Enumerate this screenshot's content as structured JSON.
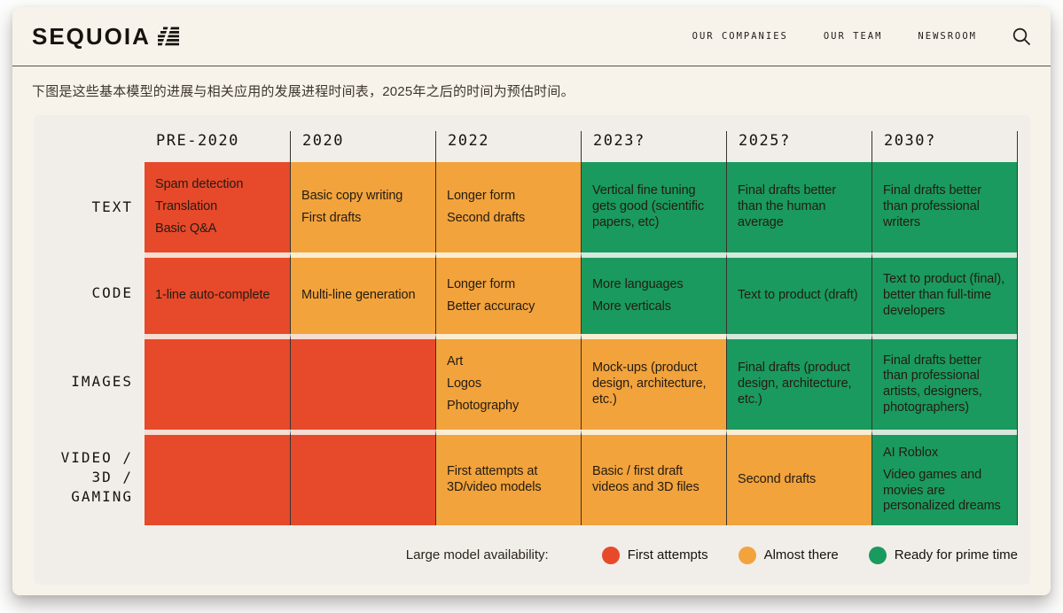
{
  "header": {
    "logo_text": "SEQUOIA",
    "nav": [
      {
        "label": "OUR COMPANIES"
      },
      {
        "label": "OUR TEAM"
      },
      {
        "label": "NEWSROOM"
      }
    ]
  },
  "intro_text": "下图是这些基本模型的进展与相关应用的发展进程时间表，2025年之后的时间为预估时间。",
  "chart": {
    "type": "table",
    "columns": [
      "PRE-2020",
      "2020",
      "2022",
      "2023?",
      "2025?",
      "2030?"
    ],
    "colors": {
      "red": "#E7492B",
      "orange": "#F2A33C",
      "green": "#1A9A5E"
    },
    "rows": [
      {
        "label_lines": [
          "TEXT"
        ],
        "cells": [
          {
            "color": "red",
            "lines": [
              "Spam detection",
              "Translation",
              "Basic Q&A"
            ]
          },
          {
            "color": "orange",
            "lines": [
              "Basic copy writing",
              "First drafts"
            ]
          },
          {
            "color": "orange",
            "lines": [
              "Longer form",
              "Second drafts"
            ]
          },
          {
            "color": "green",
            "lines": [
              "Vertical fine tuning gets good (scientific papers, etc)"
            ]
          },
          {
            "color": "green",
            "lines": [
              "Final drafts better than the human average"
            ]
          },
          {
            "color": "green",
            "lines": [
              "Final drafts better than professional writers"
            ]
          }
        ]
      },
      {
        "label_lines": [
          "CODE"
        ],
        "cells": [
          {
            "color": "red",
            "lines": [
              "1-line auto-complete"
            ]
          },
          {
            "color": "orange",
            "lines": [
              "Multi-line generation"
            ]
          },
          {
            "color": "orange",
            "lines": [
              "Longer form",
              "Better accuracy"
            ]
          },
          {
            "color": "green",
            "lines": [
              "More languages",
              "More verticals"
            ]
          },
          {
            "color": "green",
            "lines": [
              "Text to product (draft)"
            ]
          },
          {
            "color": "green",
            "lines": [
              "Text to product (final), better than full-time developers"
            ]
          }
        ]
      },
      {
        "label_lines": [
          "IMAGES"
        ],
        "cells": [
          {
            "color": "red",
            "lines": []
          },
          {
            "color": "red",
            "lines": []
          },
          {
            "color": "orange",
            "lines": [
              "Art",
              "Logos",
              "Photography"
            ]
          },
          {
            "color": "orange",
            "lines": [
              "Mock-ups (product design, architecture, etc.)"
            ]
          },
          {
            "color": "green",
            "lines": [
              "Final drafts (product design, architecture, etc.)"
            ]
          },
          {
            "color": "green",
            "lines": [
              "Final drafts better than professional artists, designers, photographers)"
            ]
          }
        ]
      },
      {
        "label_lines": [
          "VIDEO /",
          "3D /",
          "GAMING"
        ],
        "cells": [
          {
            "color": "red",
            "lines": []
          },
          {
            "color": "red",
            "lines": []
          },
          {
            "color": "orange",
            "lines": [
              "First attempts at 3D/video models"
            ]
          },
          {
            "color": "orange",
            "lines": [
              "Basic / first draft videos and 3D files"
            ]
          },
          {
            "color": "orange",
            "lines": [
              "Second drafts"
            ]
          },
          {
            "color": "green",
            "lines": [
              "AI Roblox",
              "Video games and movies are personalized dreams"
            ]
          }
        ]
      }
    ],
    "legend": {
      "title": "Large model availability:",
      "items": [
        {
          "label": "First attempts",
          "color": "red"
        },
        {
          "label": "Almost there",
          "color": "orange"
        },
        {
          "label": "Ready for prime time",
          "color": "green"
        }
      ]
    }
  }
}
